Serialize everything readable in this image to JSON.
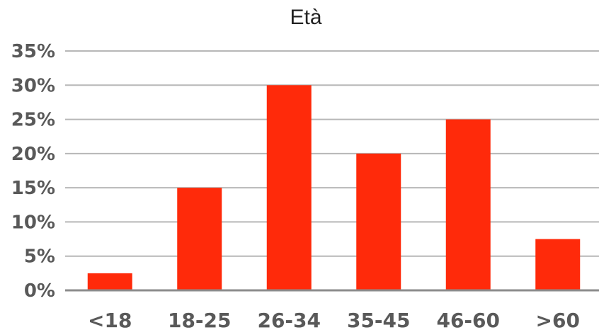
{
  "chart_data": {
    "type": "bar",
    "title": "Età",
    "categories": [
      "<18",
      "18-25",
      "26-34",
      "35-45",
      "46-60",
      ">60"
    ],
    "values": [
      2.5,
      15,
      30,
      20,
      25,
      7.5
    ],
    "ylim": [
      0,
      35
    ],
    "yticks": [
      0,
      5,
      10,
      15,
      20,
      25,
      30,
      35
    ],
    "ytick_labels": [
      "0%",
      "5%",
      "10%",
      "15%",
      "20%",
      "25%",
      "30%",
      "35%"
    ],
    "grid": true,
    "legend": "none",
    "bar_color": "#ff2a0a",
    "xlabel": "",
    "ylabel": ""
  }
}
